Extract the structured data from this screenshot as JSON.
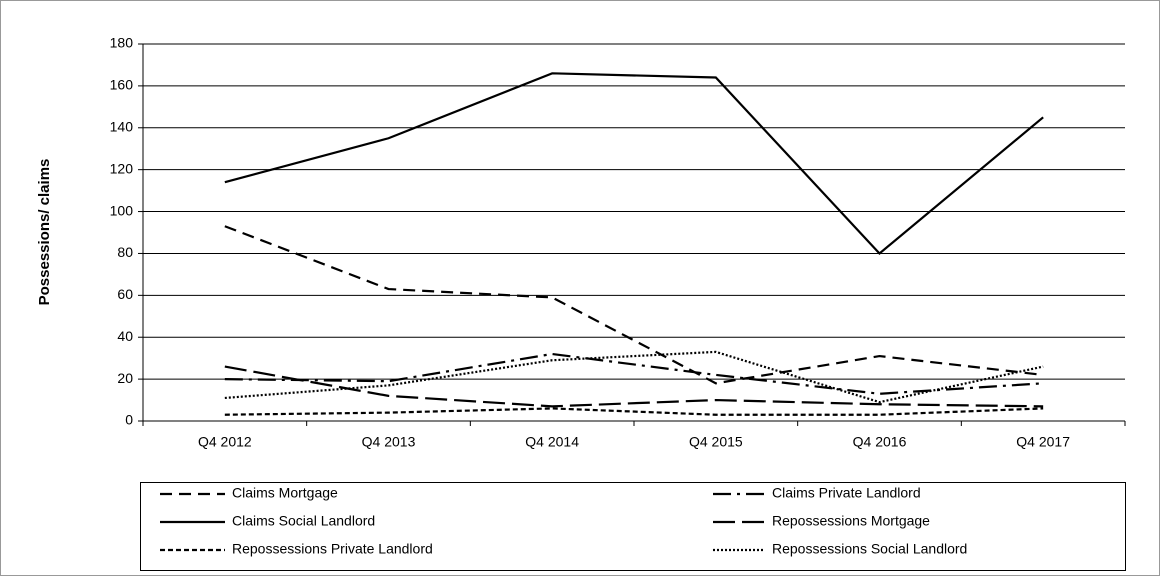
{
  "chart_data": {
    "type": "line",
    "y_label": "Possessions/ claims",
    "categories": [
      "Q4 2012",
      "Q4 2013",
      "Q4 2014",
      "Q4 2015",
      "Q4 2016",
      "Q4 2017"
    ],
    "series": [
      {
        "name": "Claims Mortgage",
        "color": "#000000",
        "style": "dashed",
        "values": [
          93,
          63,
          59,
          18,
          31,
          22
        ]
      },
      {
        "name": "Claims Private Landlord",
        "color": "#000000",
        "style": "dash-dot",
        "values": [
          20,
          19,
          32,
          22,
          13,
          18
        ]
      },
      {
        "name": "Claims Social Landlord",
        "color": "#000000",
        "style": "solid",
        "values": [
          114,
          135,
          166,
          164,
          80,
          145
        ]
      },
      {
        "name": "Repossessions Mortgage",
        "color": "#000000",
        "style": "long-dash",
        "values": [
          26,
          12,
          7,
          10,
          8,
          7
        ]
      },
      {
        "name": "Repossessions Private Landlord",
        "color": "#000000",
        "style": "short-dash",
        "values": [
          3,
          4,
          6,
          3,
          3,
          6
        ]
      },
      {
        "name": "Repossessions Social Landlord",
        "color": "#000000",
        "style": "dotted",
        "values": [
          11,
          17,
          29,
          33,
          9,
          26
        ]
      }
    ],
    "ylim": [
      0,
      180
    ],
    "yticks": [
      0,
      20,
      40,
      60,
      80,
      100,
      120,
      140,
      160,
      180
    ],
    "grid": true,
    "legend": "bottom"
  }
}
